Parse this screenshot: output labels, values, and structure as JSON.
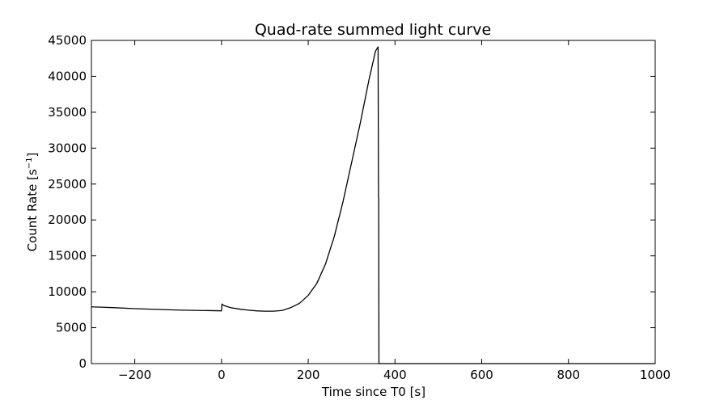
{
  "chart_data": {
    "type": "line",
    "title": "Quad-rate summed light curve",
    "xlabel": "Time since T0 [s]",
    "ylabel_main": "Count Rate [s",
    "ylabel_sup": "−1",
    "ylabel_end": "]",
    "xlim": [
      -300,
      1000
    ],
    "ylim": [
      0,
      45000
    ],
    "xticks": [
      -200,
      0,
      200,
      400,
      600,
      800,
      1000
    ],
    "xtick_labels": [
      "−200",
      "0",
      "200",
      "400",
      "600",
      "800",
      "1000"
    ],
    "yticks": [
      0,
      5000,
      10000,
      15000,
      20000,
      25000,
      30000,
      35000,
      40000,
      45000
    ],
    "ytick_labels": [
      "0",
      "5000",
      "10000",
      "15000",
      "20000",
      "25000",
      "30000",
      "35000",
      "40000",
      "45000"
    ],
    "grid": false,
    "line_color": "#000000",
    "series": [
      {
        "x": [
          -300,
          -250,
          -200,
          -150,
          -100,
          -50,
          0,
          1,
          5,
          10,
          20,
          40,
          60,
          80,
          100,
          120,
          140,
          160,
          180,
          200,
          220,
          240,
          260,
          280,
          300,
          320,
          340,
          355,
          361,
          362,
          362.5,
          363,
          364,
          400,
          500,
          600,
          700,
          800,
          900,
          1000
        ],
        "y": [
          7900,
          7800,
          7650,
          7550,
          7450,
          7400,
          7350,
          8300,
          8100,
          8000,
          7800,
          7600,
          7450,
          7350,
          7300,
          7300,
          7400,
          7800,
          8400,
          9500,
          11200,
          13900,
          17700,
          22500,
          28000,
          33500,
          39500,
          43500,
          44100,
          23200,
          23000,
          0,
          0,
          0,
          0,
          0,
          0,
          0,
          0,
          0
        ]
      }
    ]
  }
}
